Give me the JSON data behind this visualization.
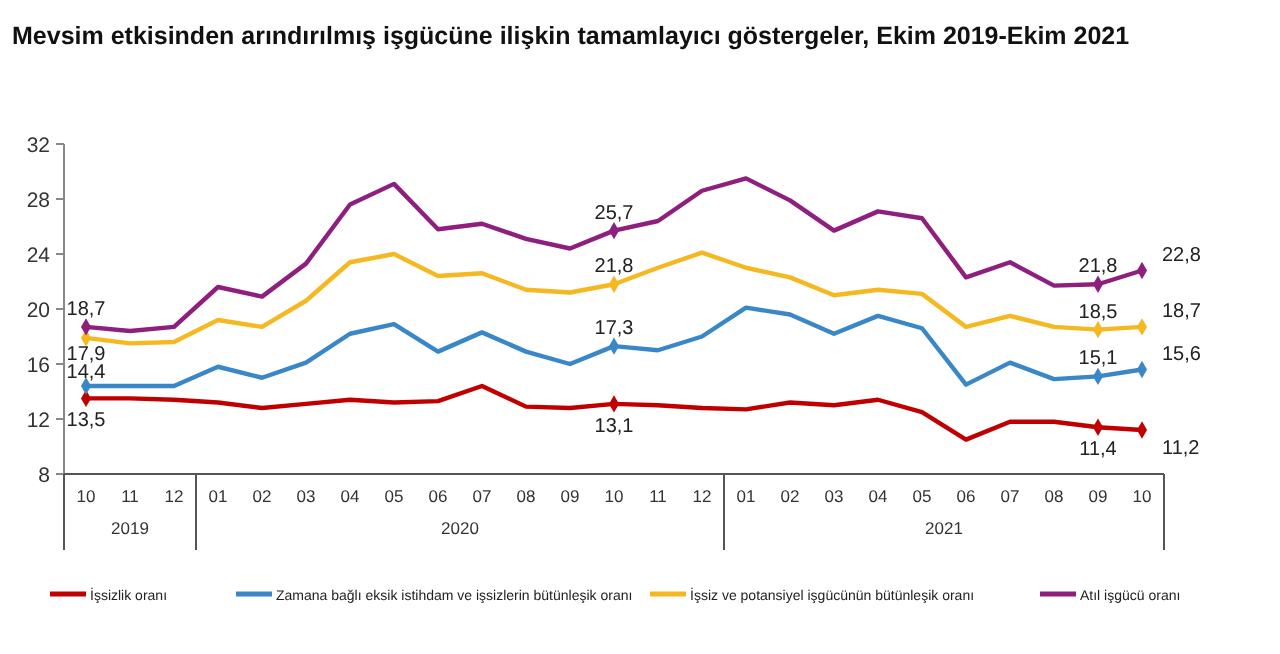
{
  "chart_data": {
    "type": "line",
    "title": "Mevsim etkisinden arındırılmış işgücüne ilişkin tamamlayıcı göstergeler, Ekim 2019-Ekim 2021",
    "categories": [
      "10",
      "11",
      "12",
      "01",
      "02",
      "03",
      "04",
      "05",
      "06",
      "07",
      "08",
      "09",
      "10",
      "11",
      "12",
      "01",
      "02",
      "03",
      "04",
      "05",
      "06",
      "07",
      "08",
      "09",
      "10"
    ],
    "annotations": [
      "2019",
      "2020",
      "2021"
    ],
    "ylim": [
      8,
      32
    ],
    "yticks": [
      8,
      12,
      16,
      20,
      24,
      28,
      32
    ],
    "grid": false,
    "legend": "bottom",
    "line_style": "solid",
    "series": [
      {
        "name": "İşsizlik oranı",
        "color": "#c00000",
        "values": [
          13.5,
          13.5,
          13.4,
          13.2,
          12.8,
          13.1,
          13.4,
          13.2,
          13.3,
          14.4,
          12.9,
          12.8,
          13.1,
          13.0,
          12.8,
          12.7,
          13.2,
          13.0,
          13.4,
          12.5,
          10.5,
          11.8,
          11.8,
          11.4,
          11.2
        ],
        "value_labels": [
          "13,5",
          null,
          null,
          null,
          null,
          null,
          null,
          null,
          null,
          null,
          null,
          null,
          "13,1",
          null,
          null,
          null,
          null,
          null,
          null,
          null,
          null,
          null,
          null,
          "11,4",
          "11,2"
        ]
      },
      {
        "name": "Zamana bağlı eksik istihdam ve işsizlerin bütünleşik oranı",
        "color": "#3a87c8",
        "values": [
          14.4,
          14.4,
          14.4,
          15.8,
          15.0,
          16.1,
          18.2,
          18.9,
          16.9,
          18.3,
          16.9,
          16.0,
          17.3,
          17.0,
          18.0,
          20.1,
          19.6,
          18.2,
          19.5,
          18.6,
          14.5,
          16.1,
          14.9,
          15.1,
          15.6
        ],
        "value_labels": [
          "14,4",
          null,
          null,
          null,
          null,
          null,
          null,
          null,
          null,
          null,
          null,
          null,
          "17,3",
          null,
          null,
          null,
          null,
          null,
          null,
          null,
          null,
          null,
          null,
          "15,1",
          "15,6"
        ]
      },
      {
        "name": "İşsiz ve potansiyel işgücünün bütünleşik oranı",
        "color": "#f5b820",
        "values": [
          17.9,
          17.5,
          17.6,
          19.2,
          18.7,
          20.6,
          23.4,
          24.0,
          22.4,
          22.6,
          21.4,
          21.2,
          21.8,
          23.0,
          24.1,
          23.0,
          22.3,
          21.0,
          21.4,
          21.1,
          18.7,
          19.5,
          18.7,
          18.5,
          18.7
        ],
        "value_labels": [
          "17,9",
          null,
          null,
          null,
          null,
          null,
          null,
          null,
          null,
          null,
          null,
          null,
          "21,8",
          null,
          null,
          null,
          null,
          null,
          null,
          null,
          null,
          null,
          null,
          "18,5",
          "18,7"
        ]
      },
      {
        "name": "Atıl işgücü oranı",
        "color": "#8e1f7f",
        "values": [
          18.7,
          18.4,
          18.7,
          21.6,
          20.9,
          23.3,
          27.6,
          29.1,
          25.8,
          26.2,
          25.1,
          24.4,
          25.7,
          26.4,
          28.6,
          29.5,
          27.9,
          25.7,
          27.1,
          26.6,
          22.3,
          23.4,
          21.7,
          21.8,
          22.8
        ],
        "value_labels": [
          "18,7",
          null,
          null,
          null,
          null,
          null,
          null,
          null,
          null,
          null,
          null,
          null,
          "25,7",
          null,
          null,
          null,
          null,
          null,
          null,
          null,
          null,
          null,
          null,
          "21,8",
          "22,8"
        ]
      }
    ]
  }
}
